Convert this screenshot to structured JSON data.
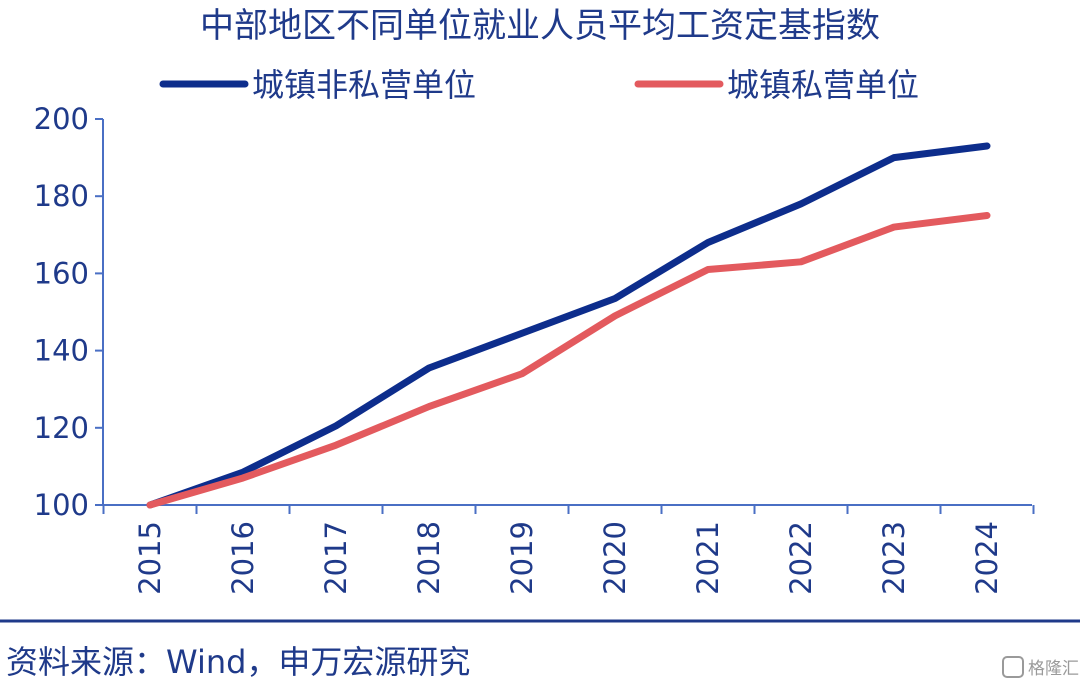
{
  "title": "中部地区不同单位就业人员平均工资定基指数",
  "source": "资料来源：Wind，申万宏源研究",
  "watermark": "格隆汇",
  "colors": {
    "text": "#1f3a8a",
    "axis": "#4a6fc4",
    "divider": "#1f3a8a"
  },
  "chart_data": {
    "type": "line",
    "x": [
      "2015",
      "2016",
      "2017",
      "2018",
      "2019",
      "2020",
      "2021",
      "2022",
      "2023",
      "2024"
    ],
    "ylim": [
      100,
      200
    ],
    "yticks": [
      "100",
      "120",
      "140",
      "160",
      "180",
      "200"
    ],
    "legend_position": "top",
    "grid": false,
    "series": [
      {
        "name": "城镇非私营单位",
        "color": "#0d2d8c",
        "values": [
          100,
          108.5,
          120.5,
          135.5,
          144.5,
          153.5,
          168,
          178,
          190,
          193
        ]
      },
      {
        "name": "城镇私营单位",
        "color": "#e35a5e",
        "values": [
          100,
          107,
          115.5,
          125.5,
          134,
          149,
          161,
          163,
          172,
          175
        ]
      }
    ]
  }
}
